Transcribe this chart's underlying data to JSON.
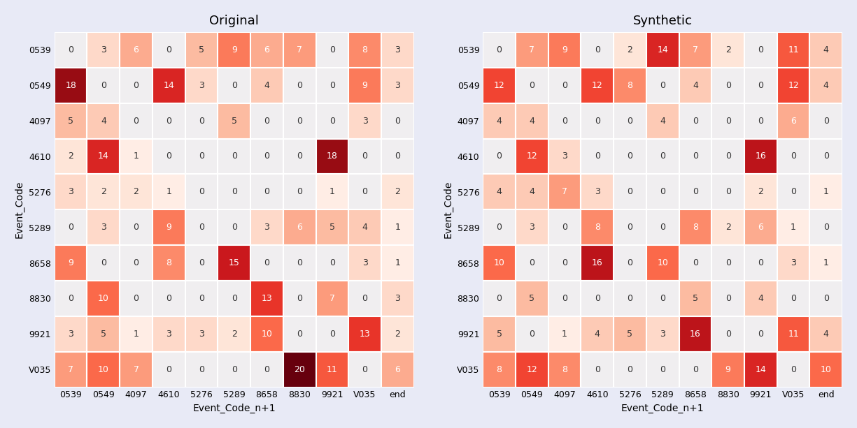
{
  "labels": [
    "0539",
    "0549",
    "4097",
    "4610",
    "5276",
    "5289",
    "8658",
    "8830",
    "9921",
    "V035",
    "end"
  ],
  "row_labels": [
    "0539",
    "0549",
    "4097",
    "4610",
    "5276",
    "5289",
    "8658",
    "8830",
    "9921",
    "V035"
  ],
  "original": [
    [
      0,
      3,
      6,
      0,
      5,
      9,
      6,
      7,
      0,
      8,
      3
    ],
    [
      18,
      0,
      0,
      14,
      3,
      0,
      4,
      0,
      0,
      9,
      3
    ],
    [
      5,
      4,
      0,
      0,
      0,
      5,
      0,
      0,
      0,
      3,
      0
    ],
    [
      2,
      14,
      1,
      0,
      0,
      0,
      0,
      0,
      18,
      0,
      0
    ],
    [
      3,
      2,
      2,
      1,
      0,
      0,
      0,
      0,
      1,
      0,
      2
    ],
    [
      0,
      3,
      0,
      9,
      0,
      0,
      3,
      6,
      5,
      4,
      1
    ],
    [
      9,
      0,
      0,
      8,
      0,
      15,
      0,
      0,
      0,
      3,
      1
    ],
    [
      0,
      10,
      0,
      0,
      0,
      0,
      13,
      0,
      7,
      0,
      3
    ],
    [
      3,
      5,
      1,
      3,
      3,
      2,
      10,
      0,
      0,
      13,
      2
    ],
    [
      7,
      10,
      7,
      0,
      0,
      0,
      0,
      20,
      11,
      0,
      6
    ]
  ],
  "synthetic": [
    [
      0,
      7,
      9,
      0,
      2,
      14,
      7,
      2,
      0,
      11,
      4
    ],
    [
      12,
      0,
      0,
      12,
      8,
      0,
      4,
      0,
      0,
      12,
      4
    ],
    [
      4,
      4,
      0,
      0,
      0,
      4,
      0,
      0,
      0,
      6,
      0
    ],
    [
      0,
      12,
      3,
      0,
      0,
      0,
      0,
      0,
      16,
      0,
      0
    ],
    [
      4,
      4,
      7,
      3,
      0,
      0,
      0,
      0,
      2,
      0,
      1
    ],
    [
      0,
      3,
      0,
      8,
      0,
      0,
      8,
      2,
      6,
      1,
      0
    ],
    [
      10,
      0,
      0,
      16,
      0,
      10,
      0,
      0,
      0,
      3,
      1
    ],
    [
      0,
      5,
      0,
      0,
      0,
      0,
      5,
      0,
      4,
      0,
      0
    ],
    [
      5,
      0,
      1,
      4,
      5,
      3,
      16,
      0,
      0,
      11,
      4
    ],
    [
      8,
      12,
      8,
      0,
      0,
      0,
      0,
      9,
      14,
      0,
      10
    ]
  ],
  "title_original": "Original",
  "title_synthetic": "Synthetic",
  "xlabel": "Event_Code_n+1",
  "ylabel": "Event_Code",
  "bg_color": "#e8eaf6",
  "cell_zero_color": "#f0eef0",
  "colormap": "Reds",
  "vmax": 20,
  "vmin": 0,
  "text_color_dark": "#333333",
  "text_color_light": "#ffffff",
  "white_text_threshold": 0.28,
  "fontsize_annot": 9,
  "fontsize_label": 9,
  "fontsize_title": 13,
  "cell_edge_color": "white",
  "cell_edge_width": 1.5
}
